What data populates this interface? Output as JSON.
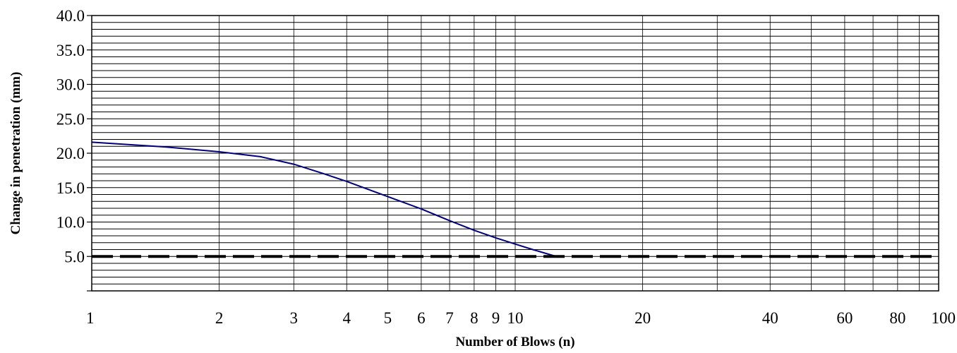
{
  "chart_data": {
    "type": "line",
    "title": "",
    "xlabel": "Number of Blows (n)",
    "ylabel": "Change in penetration (mm)",
    "x_scale": "log",
    "xlim": [
      1,
      100
    ],
    "ylim": [
      0,
      40
    ],
    "x_tick_labels": [
      "1",
      "2",
      "3",
      "4",
      "5",
      "6",
      "7",
      "8",
      "9",
      "10",
      "20",
      "40",
      "60",
      "80",
      "100"
    ],
    "x_tick_values": [
      1,
      2,
      3,
      4,
      5,
      6,
      7,
      8,
      9,
      10,
      20,
      40,
      60,
      80,
      100
    ],
    "x_gridlines": [
      2,
      3,
      4,
      5,
      6,
      7,
      8,
      9,
      10,
      20,
      30,
      40,
      50,
      60,
      70,
      80,
      90
    ],
    "y_tick_labels": [
      "5.0",
      "10.0",
      "15.0",
      "20.0",
      "25.0",
      "30.0",
      "35.0",
      "40.0"
    ],
    "y_tick_values": [
      5,
      10,
      15,
      20,
      25,
      30,
      35,
      40
    ],
    "y_minor_step": 1,
    "grid": true,
    "legend": "none",
    "series": [
      {
        "style": "solid",
        "color": "#000080",
        "x": [
          1,
          1.5,
          2,
          2.5,
          3,
          3.5,
          4,
          5,
          6,
          7,
          8,
          9,
          10,
          11,
          12.5
        ],
        "y": [
          21.6,
          20.9,
          20.2,
          19.5,
          18.4,
          17.1,
          15.9,
          13.7,
          11.9,
          10.2,
          8.8,
          7.7,
          6.8,
          6.0,
          5.0
        ]
      },
      {
        "style": "dashed",
        "color": "#000000",
        "x": [
          1,
          100
        ],
        "y": [
          5.0,
          5.0
        ]
      }
    ]
  }
}
